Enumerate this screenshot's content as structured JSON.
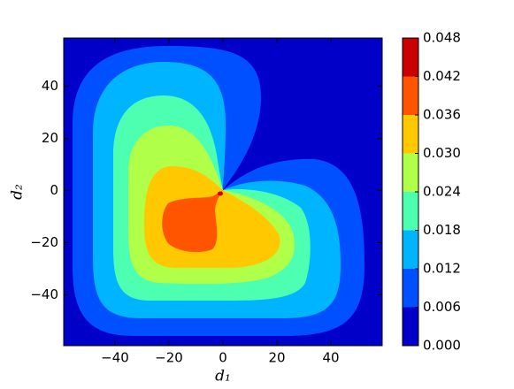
{
  "chart_data": {
    "type": "contourf",
    "x_label": "d₁",
    "y_label": "d₂",
    "xlim": [
      -59,
      59
    ],
    "ylim": [
      -59.5,
      58.5
    ],
    "xticks": [
      {
        "value": -40,
        "label": "−40"
      },
      {
        "value": -20,
        "label": "−20"
      },
      0,
      20,
      40
    ],
    "yticks": [
      {
        "value": -40,
        "label": "−40"
      },
      {
        "value": -20,
        "label": "−20"
      },
      0,
      20,
      40
    ],
    "levels": [
      {
        "value": 0,
        "label": "0.000"
      },
      {
        "value": 0.006,
        "label": "0.006"
      },
      {
        "value": 0.012,
        "label": "0.012"
      },
      {
        "value": 0.018,
        "label": "0.018"
      },
      {
        "value": 0.024,
        "label": "0.024"
      },
      {
        "value": 0.03,
        "label": "0.030"
      },
      {
        "value": 0.036,
        "label": "0.036"
      },
      {
        "value": 0.042,
        "label": "0.042"
      },
      {
        "value": 0.048,
        "label": "0.048"
      }
    ],
    "colors": [
      "#0000c8",
      "#0050ff",
      "#00b4ff",
      "#4dffb0",
      "#b0ff48",
      "#ffc800",
      "#ff5400",
      "#c80000"
    ]
  }
}
